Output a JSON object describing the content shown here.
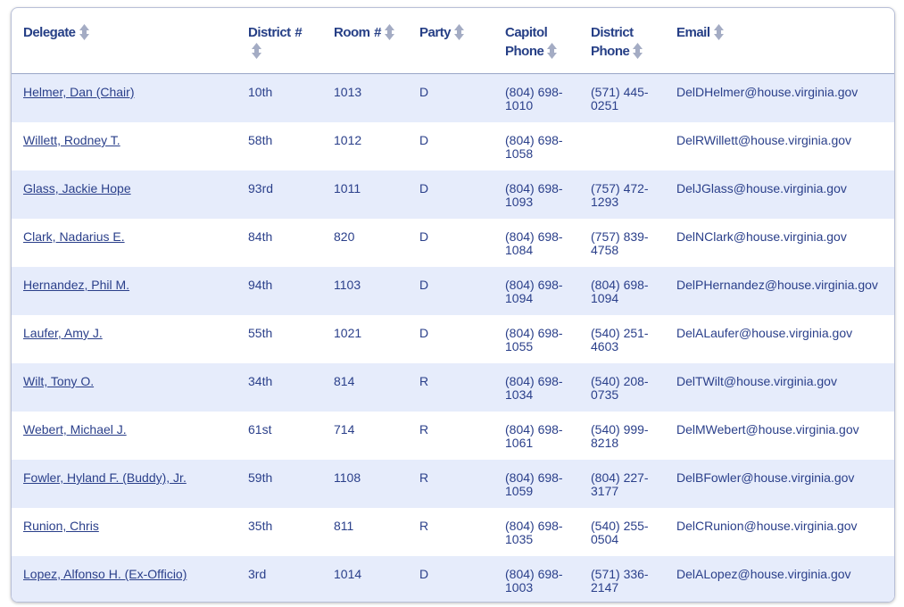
{
  "table": {
    "headers": [
      "Delegate",
      "District #",
      "Room #",
      "Party",
      "Capitol Phone",
      "District Phone",
      "Email"
    ],
    "rows": [
      [
        "Helmer, Dan (Chair)",
        "10th",
        "1013",
        "D",
        "(804) 698-1010",
        "(571) 445-0251",
        "DelDHelmer@house.virginia.gov"
      ],
      [
        "Willett, Rodney T.",
        "58th",
        "1012",
        "D",
        "(804) 698-1058",
        null,
        "DelRWillett@house.virginia.gov"
      ],
      [
        "Glass, Jackie Hope",
        "93rd",
        "1011",
        "D",
        "(804) 698-1093",
        "(757) 472-1293",
        "DelJGlass@house.virginia.gov"
      ],
      [
        "Clark, Nadarius E.",
        "84th",
        "820",
        "D",
        "(804) 698-1084",
        "(757) 839-4758",
        "DelNClark@house.virginia.gov"
      ],
      [
        "Hernandez, Phil M.",
        "94th",
        "1103",
        "D",
        "(804) 698-1094",
        "(804) 698-1094",
        "DelPHernandez@house.virginia.gov"
      ],
      [
        "Laufer, Amy J.",
        "55th",
        "1021",
        "D",
        "(804) 698-1055",
        "(540) 251-4603",
        "DelALaufer@house.virginia.gov"
      ],
      [
        "Wilt, Tony O.",
        "34th",
        "814",
        "R",
        "(804) 698-1034",
        "(540) 208-0735",
        "DelTWilt@house.virginia.gov"
      ],
      [
        "Webert, Michael J.",
        "61st",
        "714",
        "R",
        "(804) 698-1061",
        "(540) 999-8218",
        "DelMWebert@house.virginia.gov"
      ],
      [
        "Fowler, Hyland F. (Buddy), Jr.",
        "59th",
        "1108",
        "R",
        "(804) 698-1059",
        "(804) 227-3177",
        "DelBFowler@house.virginia.gov"
      ],
      [
        "Runion, Chris",
        "35th",
        "811",
        "R",
        "(804) 698-1035",
        "(540) 255-0504",
        "DelCRunion@house.virginia.gov"
      ],
      [
        "Lopez, Alfonso H. (Ex-Officio)",
        "3rd",
        "1014",
        "D",
        "(804) 698-1003",
        "(571) 336-2147",
        "DelALopez@house.virginia.gov"
      ]
    ]
  }
}
